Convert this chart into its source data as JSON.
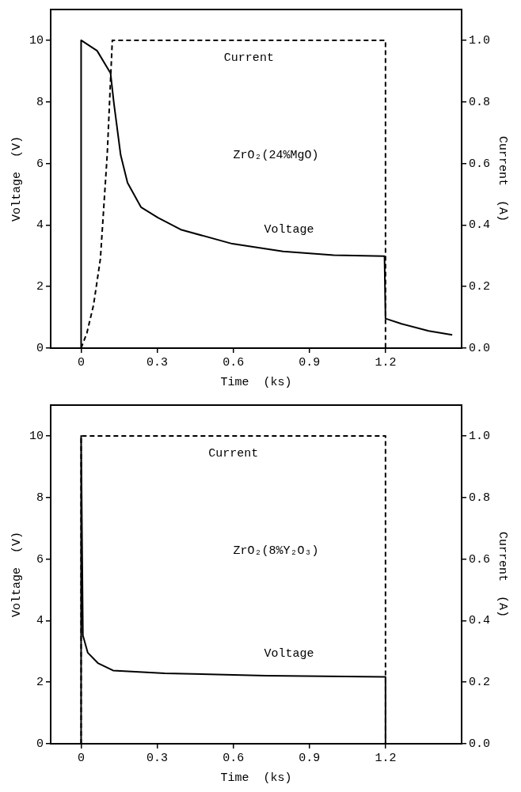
{
  "chart_data": [
    {
      "type": "line",
      "xlabel": "Time  (ks)",
      "ylabel": "Voltage  (V)",
      "y2label": "Current  (A)",
      "xlim": [
        -0.12,
        1.5
      ],
      "xticks": [
        0,
        0.3,
        0.6,
        0.9,
        1.2
      ],
      "ylim": [
        0,
        11
      ],
      "yticks": [
        0,
        2,
        4,
        6,
        8,
        10
      ],
      "y2lim": [
        0,
        1.1
      ],
      "y2ticks": [
        {
          "value": 0,
          "label": "0.0"
        },
        {
          "value": 0.2,
          "label": "0.2"
        },
        {
          "value": 0.4,
          "label": "0.4"
        },
        {
          "value": 0.6,
          "label": "0.6"
        },
        {
          "value": 0.8,
          "label": "0.8"
        },
        {
          "value": 1,
          "label": "1.0"
        }
      ],
      "grid": false,
      "legend": false,
      "marker": "none",
      "annotations": [
        "ZrO₂(24%MgO)"
      ],
      "series": [
        {
          "type": "line",
          "name": "Voltage",
          "color": "#000000",
          "line_style": "solid",
          "x": [
            0,
            0,
            0.063,
            0.116,
            0.129,
            0.156,
            0.183,
            0.236,
            0.303,
            0.396,
            0.596,
            0.796,
            0.996,
            1.196,
            1.2,
            1.263,
            1.37,
            1.463
          ],
          "values": [
            0,
            10,
            9.66,
            8.93,
            7.97,
            6.27,
            5.37,
            4.58,
            4.24,
            3.84,
            3.39,
            3.14,
            3.02,
            2.99,
            0.96,
            0.79,
            0.56,
            0.43
          ]
        },
        {
          "type": "line",
          "name": "Current",
          "color": "#000000",
          "line_style": "dashed",
          "axis": "y2",
          "x": [
            0,
            0.023,
            0.049,
            0.076,
            0.103,
            0.123,
            1.2,
            1.2
          ],
          "values": [
            0,
            0.05,
            0.14,
            0.29,
            0.63,
            1.0,
            1.0,
            0
          ]
        }
      ]
    },
    {
      "type": "line",
      "xlabel": "Time  (ks)",
      "ylabel": "Voltage  (V)",
      "y2label": "Current  (A)",
      "xlim": [
        -0.12,
        1.5
      ],
      "xticks": [
        0,
        0.3,
        0.6,
        0.9,
        1.2
      ],
      "ylim": [
        0,
        11
      ],
      "yticks": [
        0,
        2,
        4,
        6,
        8,
        10
      ],
      "y2lim": [
        0,
        1.1
      ],
      "y2ticks": [
        {
          "value": 0,
          "label": "0.0"
        },
        {
          "value": 0.2,
          "label": "0.2"
        },
        {
          "value": 0.4,
          "label": "0.4"
        },
        {
          "value": 0.6,
          "label": "0.6"
        },
        {
          "value": 0.8,
          "label": "0.8"
        },
        {
          "value": 1,
          "label": "1.0"
        }
      ],
      "grid": false,
      "legend": false,
      "marker": "none",
      "annotations": [
        "ZrO₂(8%Y₂O₃)"
      ],
      "series": [
        {
          "type": "line",
          "name": "Voltage",
          "color": "#000000",
          "line_style": "solid",
          "x": [
            0,
            0,
            0.007,
            0.026,
            0.066,
            0.126,
            0.33,
            0.73,
            1.2,
            1.2
          ],
          "values": [
            0,
            10,
            3.52,
            2.96,
            2.62,
            2.38,
            2.29,
            2.21,
            2.17,
            0
          ]
        },
        {
          "type": "line",
          "name": "Current",
          "color": "#000000",
          "line_style": "dashed",
          "axis": "y2",
          "x": [
            0,
            0,
            1.2,
            1.2
          ],
          "values": [
            0,
            1.0,
            1.0,
            0
          ]
        }
      ]
    }
  ]
}
